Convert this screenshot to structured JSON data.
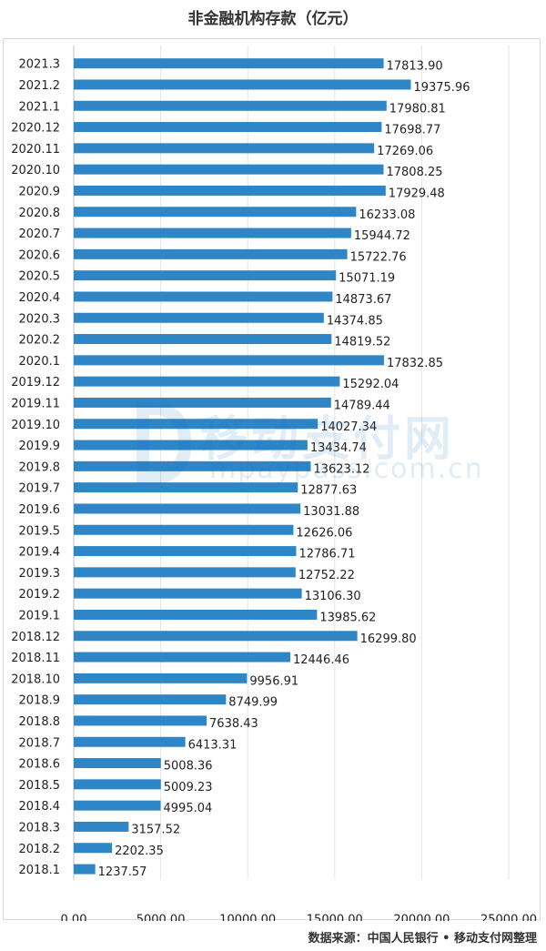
{
  "chart_data": {
    "type": "bar",
    "orientation": "horizontal",
    "title": "非金融机构存款（亿元）",
    "categories": [
      "2021.3",
      "2021.2",
      "2021.1",
      "2020.12",
      "2020.11",
      "2020.10",
      "2020.9",
      "2020.8",
      "2020.7",
      "2020.6",
      "2020.5",
      "2020.4",
      "2020.3",
      "2020.2",
      "2020.1",
      "2019.12",
      "2019.11",
      "2019.10",
      "2019.9",
      "2019.8",
      "2019.7",
      "2019.6",
      "2019.5",
      "2019.4",
      "2019.3",
      "2019.2",
      "2019.1",
      "2018.12",
      "2018.11",
      "2018.10",
      "2018.9",
      "2018.8",
      "2018.7",
      "2018.6",
      "2018.5",
      "2018.4",
      "2018.3",
      "2018.2",
      "2018.1"
    ],
    "values": [
      17813.9,
      19375.96,
      17980.81,
      17698.77,
      17269.06,
      17808.25,
      17929.48,
      16233.08,
      15944.72,
      15722.76,
      15071.19,
      14873.67,
      14374.85,
      14819.52,
      17832.85,
      15292.04,
      14789.44,
      14027.34,
      13434.74,
      13623.12,
      12877.63,
      13031.88,
      12626.06,
      12786.71,
      12752.22,
      13106.3,
      13985.62,
      16299.8,
      12446.46,
      9956.91,
      8749.99,
      7638.43,
      6413.31,
      5008.36,
      5009.23,
      4995.04,
      3157.52,
      2202.35,
      1237.57
    ],
    "labels": [
      "17813.90",
      "19375.96",
      "17980.81",
      "17698.77",
      "17269.06",
      "17808.25",
      "17929.48",
      "16233.08",
      "15944.72",
      "15722.76",
      "15071.19",
      "14873.67",
      "14374.85",
      "14819.52",
      "17832.85",
      "15292.04",
      "14789.44",
      "14027.34",
      "13434.74",
      "13623.12",
      "12877.63",
      "13031.88",
      "12626.06",
      "12786.71",
      "12752.22",
      "13106.30",
      "13985.62",
      "16299.80",
      "12446.46",
      "9956.91",
      "8749.99",
      "7638.43",
      "6413.31",
      "5008.36",
      "5009.23",
      "4995.04",
      "3157.52",
      "2202.35",
      "1237.57"
    ],
    "xlim": [
      0,
      25000
    ],
    "xticks": [
      "0.00",
      "5000.00",
      "10000.00",
      "15000.00",
      "20000.00",
      "25000.00"
    ],
    "xtick_values": [
      0,
      5000,
      10000,
      15000,
      20000,
      25000
    ],
    "grid": "vertical",
    "bar_color": "#2e86c7"
  },
  "watermark": {
    "name": "移动支付网",
    "url": "mpaypass.com.cn"
  },
  "source": "数据来源：中国人民银行 • 移动支付网整理"
}
